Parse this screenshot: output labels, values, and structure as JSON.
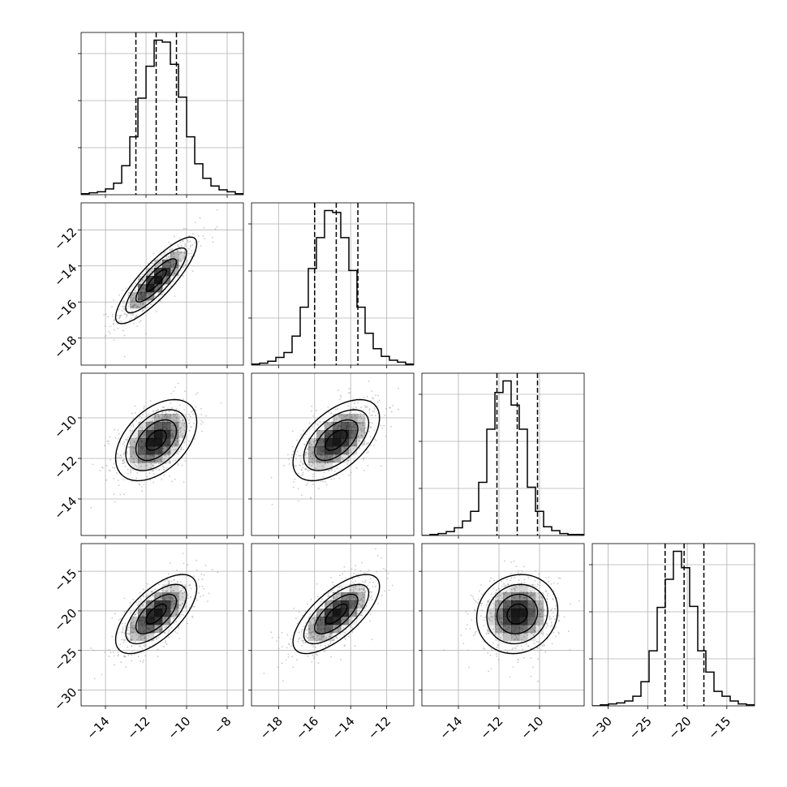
{
  "chart_data": {
    "type": "corner",
    "title": "",
    "colors": {
      "line": "#000000",
      "grid": "#b0b0b0",
      "samples": "#9e9e9e",
      "density_dark": "#000000"
    },
    "grid": true,
    "parameters": [
      {
        "index": 0,
        "range": [
          -15.2,
          -7.2
        ],
        "ticks": [
          -14,
          -12,
          -10,
          -8
        ],
        "median": -11.5,
        "q16": -12.5,
        "q84": -10.5,
        "sigma": 1.0,
        "histogram": {
          "edges_start": -15.2,
          "bin_width": 0.4,
          "counts": [
            1,
            2,
            3,
            6,
            12,
            30,
            60,
            100,
            133,
            160,
            158,
            135,
            101,
            60,
            32,
            17,
            9,
            5,
            3,
            1
          ]
        }
      },
      {
        "index": 1,
        "range": [
          -19.5,
          -10.5
        ],
        "ticks": [
          -18,
          -16,
          -14,
          -12
        ],
        "median": -14.8,
        "q16": -16.0,
        "q84": -13.6,
        "sigma": 1.2,
        "histogram": {
          "edges_start": -19.5,
          "bin_width": 0.45,
          "counts": [
            1,
            2,
            4,
            8,
            13,
            30,
            60,
            100,
            132,
            160,
            158,
            132,
            98,
            60,
            33,
            17,
            9,
            5,
            3,
            1
          ]
        }
      },
      {
        "index": 2,
        "range": [
          -15.8,
          -7.8
        ],
        "ticks": [
          -14,
          -12,
          -10
        ],
        "median": -11.1,
        "q16": -12.1,
        "q84": -10.1,
        "sigma": 1.0,
        "histogram": {
          "edges_start": -15.8,
          "bin_width": 0.4,
          "counts": [
            0,
            1,
            2,
            4,
            8,
            15,
            25,
            55,
            110,
            148,
            160,
            135,
            110,
            50,
            25,
            9,
            5,
            2,
            1,
            1
          ]
        }
      },
      {
        "index": 3,
        "range": [
          -32.0,
          -11.5
        ],
        "ticks": [
          -30,
          -25,
          -20,
          -15
        ],
        "median": -20.4,
        "q16": -22.8,
        "q84": -17.9,
        "sigma": 2.5,
        "histogram": {
          "edges_start": -32.0,
          "bin_width": 1.025,
          "counts": [
            0,
            1,
            2,
            3,
            5,
            10,
            25,
            57,
            102,
            131,
            160,
            143,
            103,
            57,
            35,
            15,
            10,
            5,
            2,
            1
          ]
        }
      }
    ],
    "pairs": [
      {
        "x": 0,
        "y": 1,
        "rho": 0.85,
        "peak": [
          -11.5,
          -14.8
        ]
      },
      {
        "x": 0,
        "y": 2,
        "rho": 0.45,
        "peak": [
          -11.5,
          -11.1
        ]
      },
      {
        "x": 1,
        "y": 2,
        "rho": 0.55,
        "peak": [
          -14.8,
          -11.1
        ]
      },
      {
        "x": 0,
        "y": 3,
        "rho": 0.65,
        "peak": [
          -11.5,
          -20.4
        ]
      },
      {
        "x": 1,
        "y": 3,
        "rho": 0.7,
        "peak": [
          -14.8,
          -20.4
        ]
      },
      {
        "x": 2,
        "y": 3,
        "rho": 0.1,
        "peak": [
          -11.1,
          -20.4
        ]
      }
    ],
    "contour_levels_sigma": [
      0.5,
      1.0,
      1.5,
      2.0
    ]
  }
}
